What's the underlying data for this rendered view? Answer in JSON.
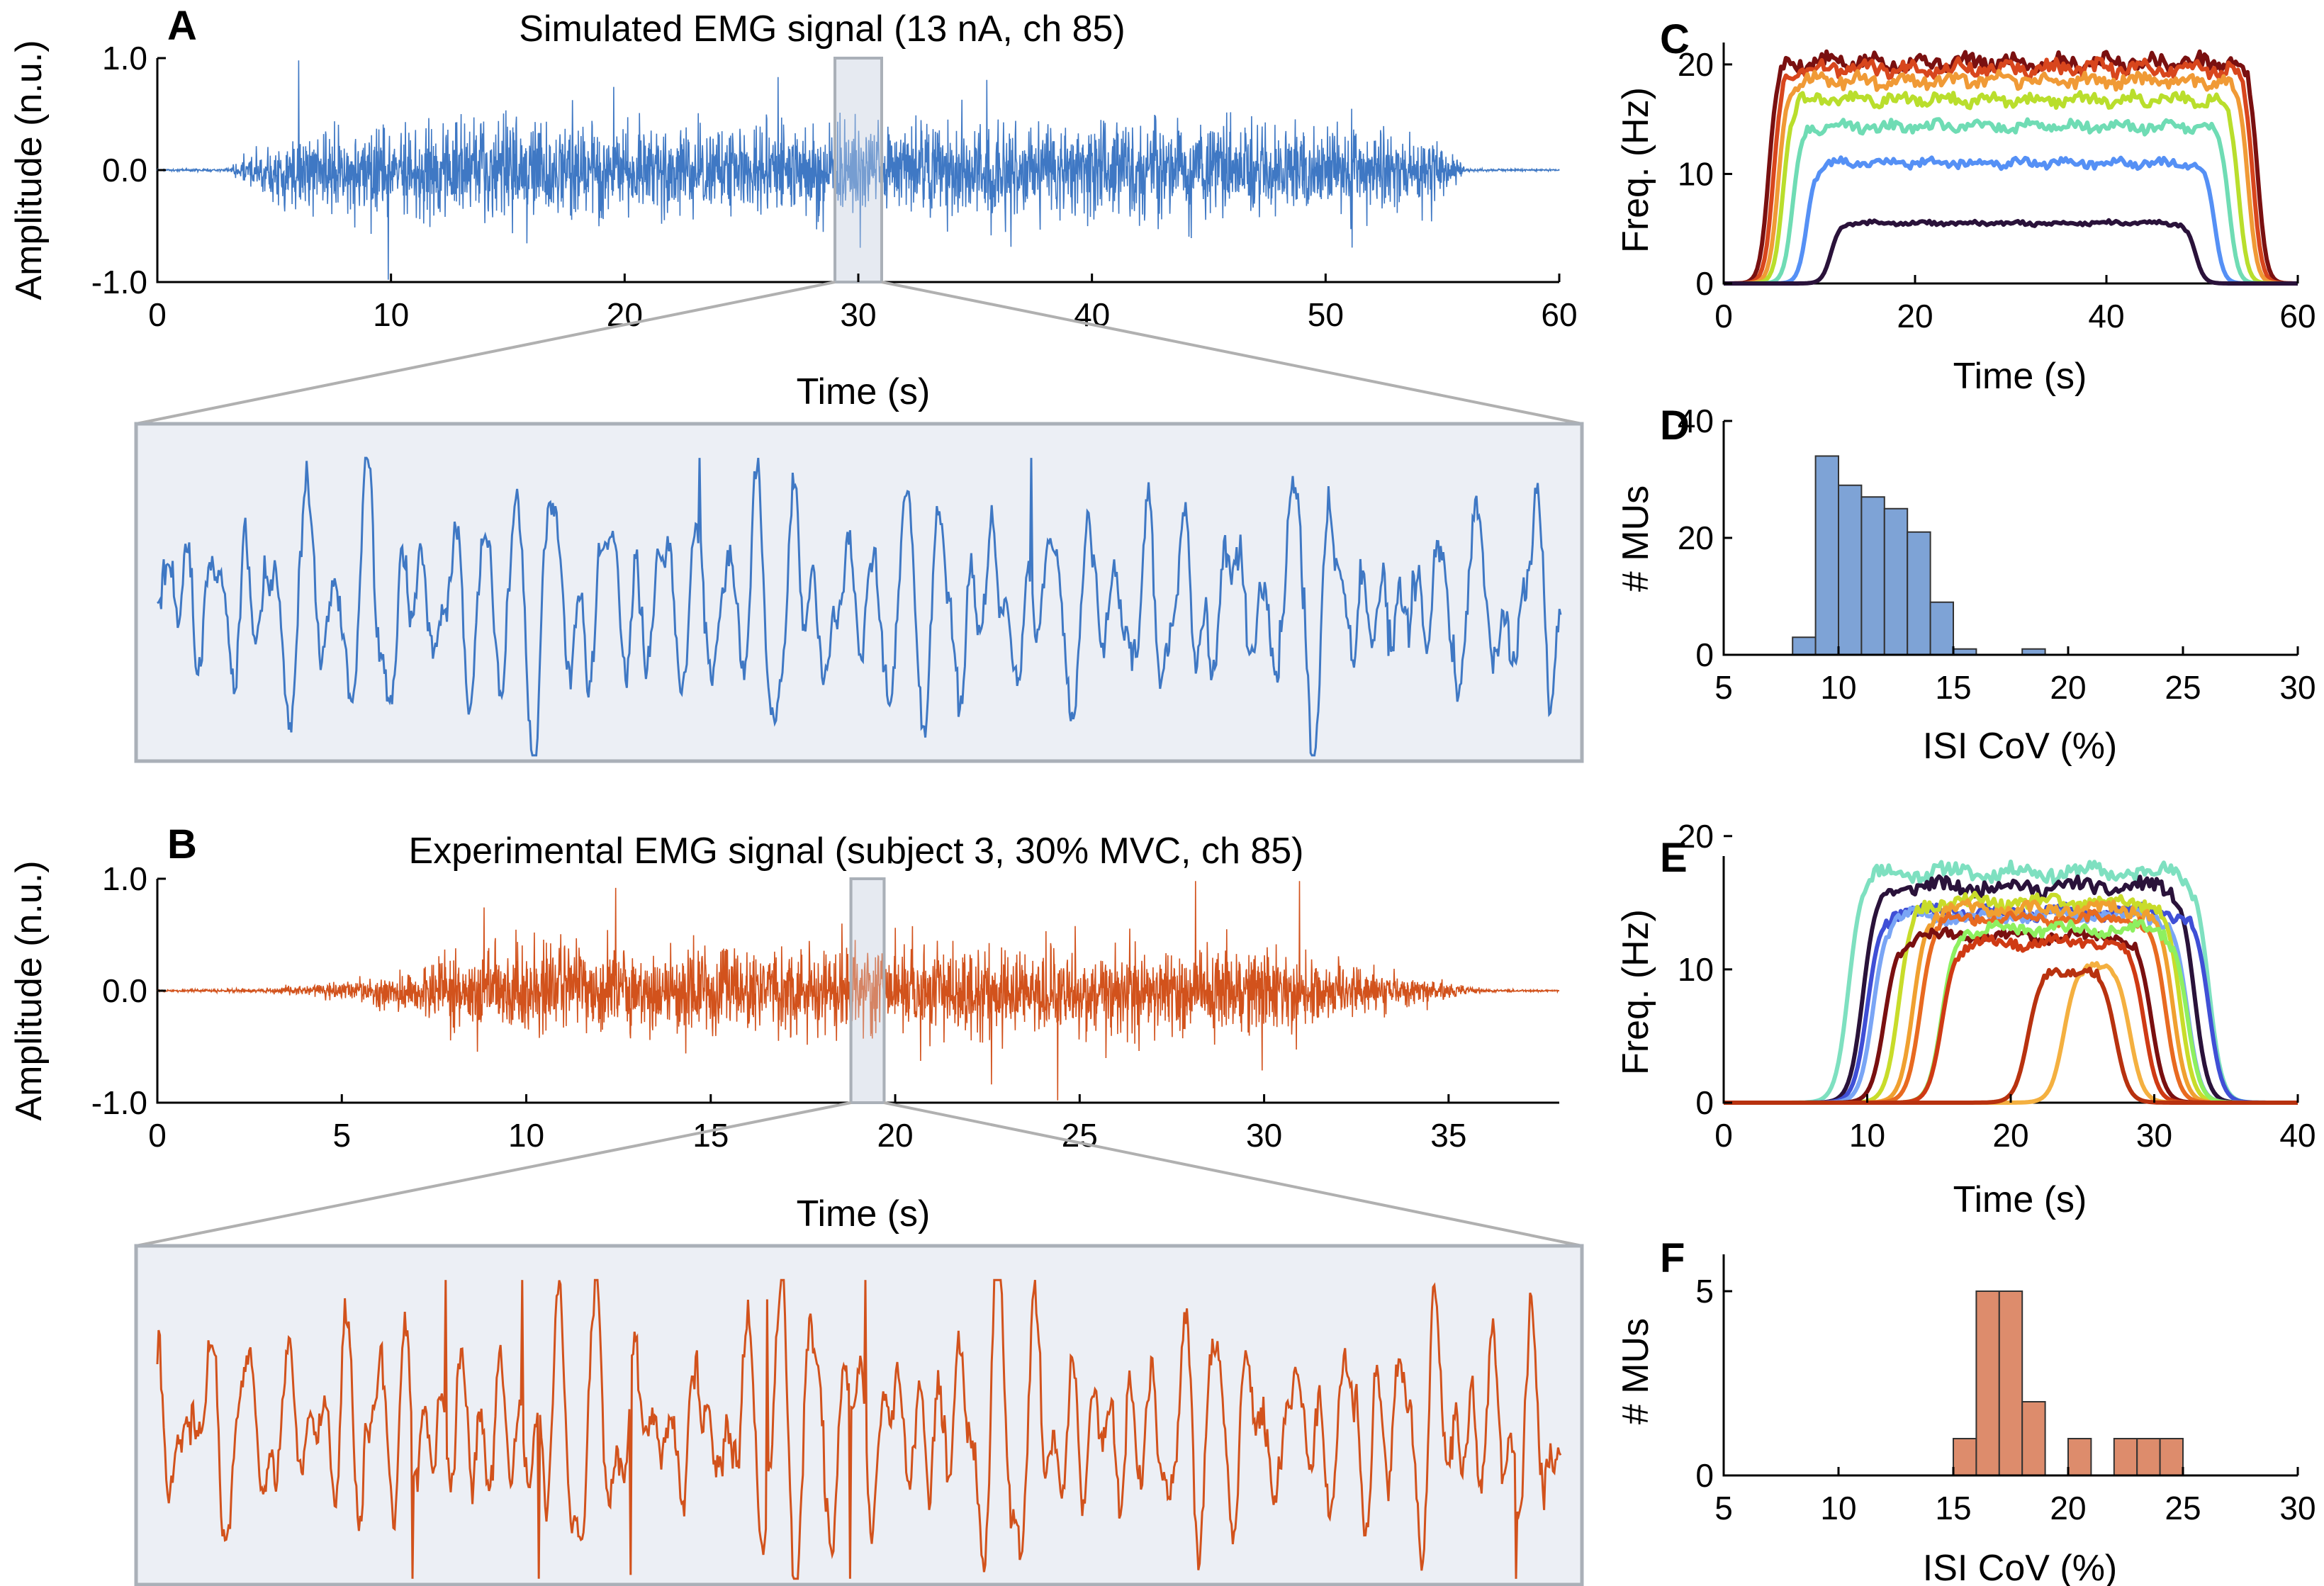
{
  "panels": {
    "A": {
      "letter": "A",
      "title": "Simulated EMG signal (13 nA, ch 85)",
      "xlabel": "Time (s)",
      "ylabel": "Amplitude (n.u.)"
    },
    "B": {
      "letter": "B",
      "title": "Experimental EMG signal (subject 3, 30% MVC, ch 85)",
      "xlabel": "Time (s)",
      "ylabel": "Amplitude (n.u.)"
    },
    "C": {
      "letter": "C",
      "xlabel": "Time (s)",
      "ylabel": "Freq. (Hz)"
    },
    "D": {
      "letter": "D",
      "xlabel": "ISI CoV (%)",
      "ylabel": "# MUs"
    },
    "E": {
      "letter": "E",
      "xlabel": "Time (s)",
      "ylabel": "Freq. (Hz)"
    },
    "F": {
      "letter": "F",
      "xlabel": "ISI CoV (%)",
      "ylabel": "# MUs"
    }
  },
  "colors": {
    "simulated": "#3f78c4",
    "experimental": "#d2521c",
    "hist_sim": "#7ea3d6",
    "hist_exp": "#dd8c6c",
    "zoom_bg": "#eceff5",
    "zoom_border": "#aab0b8"
  },
  "chart_data": [
    {
      "id": "A",
      "type": "line",
      "x_range": [
        0,
        60
      ],
      "ylim": [
        -1.0,
        1.0
      ],
      "xticks": [
        "0",
        "10",
        "20",
        "30",
        "40",
        "50",
        "60"
      ],
      "yticks": [
        "1.0",
        "0.0",
        "-1.0"
      ],
      "envelope": {
        "t": [
          0,
          3,
          5,
          10,
          20,
          30,
          40,
          50,
          55,
          56,
          60
        ],
        "amp": [
          0.01,
          0.02,
          0.45,
          0.6,
          0.62,
          0.62,
          0.62,
          0.6,
          0.4,
          0.02,
          0.01
        ]
      },
      "zoom_window": [
        29,
        31
      ]
    },
    {
      "id": "B",
      "type": "line",
      "x_range": [
        0,
        38
      ],
      "ylim": [
        -1.0,
        1.0
      ],
      "xticks": [
        "0",
        "5",
        "10",
        "15",
        "20",
        "25",
        "30",
        "35"
      ],
      "yticks": [
        "1.0",
        "0.0",
        "-1.0"
      ],
      "envelope": {
        "t": [
          0,
          3,
          5,
          7,
          8,
          10,
          20,
          30,
          32,
          35,
          36,
          38
        ],
        "amp": [
          0.01,
          0.03,
          0.12,
          0.3,
          0.55,
          0.6,
          0.6,
          0.58,
          0.35,
          0.1,
          0.02,
          0.01
        ]
      },
      "zoom_window": [
        18.8,
        19.7
      ]
    },
    {
      "id": "C",
      "type": "line",
      "xlim": [
        0,
        60
      ],
      "ylim": [
        0,
        22
      ],
      "xticks": [
        0,
        20,
        40,
        60
      ],
      "yticks": [
        0,
        10,
        20
      ],
      "series": [
        {
          "color": "#7a1010",
          "plateau": 20.2,
          "on": 3.5,
          "off": 57
        },
        {
          "color": "#d8461d",
          "plateau": 19.6,
          "on": 4.0,
          "off": 56.5
        },
        {
          "color": "#f09a36",
          "plateau": 18.5,
          "on": 4.5,
          "off": 56
        },
        {
          "color": "#b9de2c",
          "plateau": 16.8,
          "on": 5.0,
          "off": 55
        },
        {
          "color": "#6fdcb4",
          "plateau": 14.3,
          "on": 6.0,
          "off": 54
        },
        {
          "color": "#5590f5",
          "plateau": 11.0,
          "on": 7.5,
          "off": 52.5
        },
        {
          "color": "#2a123a",
          "plateau": 5.5,
          "on": 10.0,
          "off": 50.5
        }
      ]
    },
    {
      "id": "D",
      "type": "bar",
      "xlim": [
        5,
        30
      ],
      "ylim": [
        0,
        40
      ],
      "xticks": [
        5,
        10,
        15,
        20,
        25,
        30
      ],
      "yticks": [
        0,
        20,
        40
      ],
      "bin_edges": [
        8,
        9,
        10,
        11,
        12,
        13,
        14,
        15,
        16,
        17,
        18,
        19,
        20,
        21,
        22
      ],
      "counts": [
        3,
        34,
        29,
        27,
        25,
        21,
        9,
        1,
        0,
        0,
        1,
        0,
        0,
        0
      ]
    },
    {
      "id": "E",
      "type": "line",
      "xlim": [
        0,
        40
      ],
      "ylim": [
        0,
        18.5
      ],
      "xticks": [
        0,
        10,
        20,
        30,
        40
      ],
      "yticks": [
        0,
        10,
        20
      ],
      "series": [
        {
          "color": "#7ee0c0",
          "plateau": 17.3,
          "on": 7.5,
          "off": 35.0
        },
        {
          "color": "#2a123a",
          "plateau": 16.2,
          "on": 8.5,
          "off": 34.0
        },
        {
          "color": "#3f4fd6",
          "plateau": 14.3,
          "on": 8.8,
          "off": 35.0
        },
        {
          "color": "#7aa5f5",
          "plateau": 14.0,
          "on": 9.2,
          "off": 33.5
        },
        {
          "color": "#c8dc2a",
          "plateau": 15.0,
          "on": 11.0,
          "off": 33.0
        },
        {
          "color": "#f0a030",
          "plateau": 14.5,
          "on": 12.0,
          "off": 32.5
        },
        {
          "color": "#e86a20",
          "plateau": 13.8,
          "on": 12.5,
          "off": 32.0
        },
        {
          "color": "#7a1010",
          "plateau": 12.5,
          "on": 10.0,
          "off": 31.0
        },
        {
          "color": "#8ef060",
          "plateau": 13.0,
          "on": 14.0,
          "off": 33.5
        },
        {
          "color": "#cf3a14",
          "plateau": 12.0,
          "on": 14.0,
          "off": 30.5
        },
        {
          "color": "#f4b040",
          "plateau": 10.5,
          "on": 22.5,
          "off": 29.5
        },
        {
          "color": "#b8320f",
          "plateau": 10.0,
          "on": 20.0,
          "off": 28.5
        }
      ]
    },
    {
      "id": "F",
      "type": "bar",
      "xlim": [
        5,
        30
      ],
      "ylim": [
        0,
        6
      ],
      "xticks": [
        5,
        10,
        15,
        20,
        25,
        30
      ],
      "yticks": [
        0,
        5
      ],
      "bin_edges": [
        15,
        16,
        17,
        18,
        19,
        20,
        21,
        22,
        23,
        24,
        25
      ],
      "counts": [
        1,
        5,
        5,
        2,
        0,
        1,
        0,
        1,
        1,
        1
      ]
    }
  ]
}
